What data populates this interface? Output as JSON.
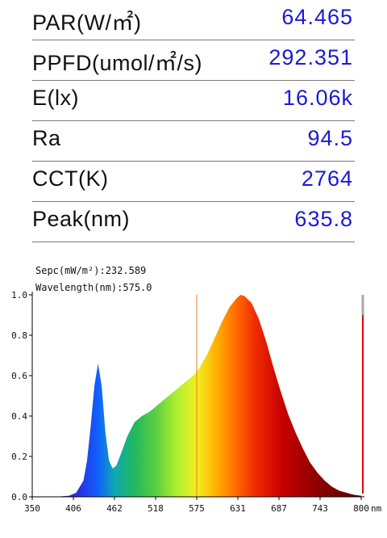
{
  "metrics": [
    {
      "label": "PAR(W/㎡)",
      "value": "64.465"
    },
    {
      "label": "PPFD(umol/㎡/s)",
      "value": "292.351"
    },
    {
      "label": "E(lx)",
      "value": "16.06k"
    },
    {
      "label": "Ra",
      "value": "94.5"
    },
    {
      "label": "CCT(K)",
      "value": "2764"
    },
    {
      "label": "Peak(nm)",
      "value": "635.8"
    }
  ],
  "readout": {
    "sepc": "Sepc(mW/m²):232.589",
    "wavelength": "Wavelength(nm):575.0"
  },
  "chart_data": {
    "type": "area",
    "title": "",
    "xlabel": "nm",
    "ylabel": "",
    "xlim": [
      350,
      800
    ],
    "ylim": [
      0,
      1.0
    ],
    "x_ticks": [
      "350",
      "406",
      "462",
      "518",
      "575",
      "631",
      "687",
      "743",
      "800"
    ],
    "y_ticks": [
      "0.0",
      "0.2",
      "0.4",
      "0.6",
      "0.8",
      "1.0"
    ],
    "cursor_wavelength": 575.0,
    "series": [
      {
        "x": [
          350,
          380,
          400,
          410,
          420,
          425,
          430,
          435,
          440,
          445,
          450,
          455,
          460,
          465,
          470,
          480,
          490,
          500,
          510,
          520,
          530,
          540,
          550,
          560,
          570,
          575,
          580,
          590,
          600,
          610,
          620,
          630,
          635,
          640,
          650,
          660,
          670,
          680,
          690,
          700,
          710,
          720,
          730,
          740,
          750,
          760,
          770,
          780,
          790,
          800
        ],
        "values": [
          0.0,
          0.0,
          0.005,
          0.02,
          0.08,
          0.18,
          0.35,
          0.55,
          0.66,
          0.55,
          0.32,
          0.18,
          0.14,
          0.155,
          0.2,
          0.3,
          0.37,
          0.4,
          0.42,
          0.45,
          0.48,
          0.51,
          0.54,
          0.57,
          0.6,
          0.62,
          0.645,
          0.71,
          0.79,
          0.87,
          0.94,
          0.985,
          1.0,
          0.995,
          0.96,
          0.88,
          0.77,
          0.64,
          0.52,
          0.41,
          0.32,
          0.24,
          0.17,
          0.12,
          0.08,
          0.05,
          0.03,
          0.02,
          0.01,
          0.005
        ]
      }
    ]
  },
  "colors": {
    "value_text": "#1a1ad6",
    "cursor": "#e07a2c",
    "marker": "#e00000"
  }
}
